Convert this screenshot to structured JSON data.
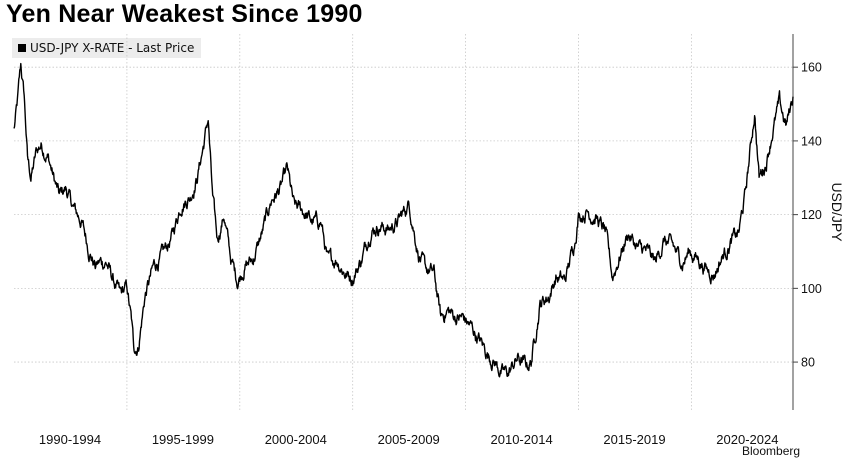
{
  "title": "Yen Near Weakest Since 1990",
  "legend": {
    "label": "USD-JPY X-RATE - Last Price",
    "icon": "black-square-swatch"
  },
  "source": "Bloomberg",
  "chart_data": {
    "type": "line",
    "title": "Yen Near Weakest Since 1990",
    "ylabel": "USD/JPY",
    "xlabel": "",
    "ylim": [
      67,
      169
    ],
    "yticks": [
      80,
      100,
      120,
      140,
      160
    ],
    "xlim": [
      1990.0,
      2024.5
    ],
    "x_tick_labels": [
      {
        "label": "1990-1994",
        "x": 1990
      },
      {
        "label": "1995-1999",
        "x": 1995
      },
      {
        "label": "2000-2004",
        "x": 2000
      },
      {
        "label": "2005-2009",
        "x": 2005
      },
      {
        "label": "2010-2014",
        "x": 2010
      },
      {
        "label": "2015-2019",
        "x": 2015
      },
      {
        "label": "2020-2024",
        "x": 2020
      }
    ],
    "x_gridlines": [
      1995,
      2000,
      2005,
      2010,
      2015,
      2020
    ],
    "grid": true,
    "legend_position": "top-left",
    "y_axis_side": "right",
    "line_color": "#000000",
    "series": [
      {
        "name": "USD-JPY X-RATE - Last Price",
        "x": [
          1990.0,
          1990.15,
          1990.3,
          1990.45,
          1990.6,
          1990.75,
          1991.0,
          1991.2,
          1991.5,
          1991.8,
          1992.0,
          1992.3,
          1992.6,
          1993.0,
          1993.3,
          1993.6,
          1993.8,
          1994.1,
          1994.4,
          1994.7,
          1995.0,
          1995.2,
          1995.3,
          1995.5,
          1995.8,
          1996.2,
          1996.6,
          1997.0,
          1997.4,
          1997.8,
          1998.1,
          1998.4,
          1998.6,
          1998.8,
          1999.0,
          1999.3,
          1999.6,
          1999.9,
          2000.2,
          2000.6,
          2001.0,
          2001.4,
          2001.8,
          2002.1,
          2002.4,
          2002.8,
          2003.2,
          2003.6,
          2003.9,
          2004.3,
          2004.7,
          2005.0,
          2005.4,
          2005.8,
          2006.2,
          2006.6,
          2007.0,
          2007.5,
          2007.9,
          2008.2,
          2008.6,
          2008.9,
          2009.2,
          2009.6,
          2009.9,
          2010.3,
          2010.7,
          2011.0,
          2011.3,
          2011.6,
          2011.9,
          2012.3,
          2012.7,
          2012.9,
          2013.3,
          2013.7,
          2014.0,
          2014.4,
          2014.8,
          2015.0,
          2015.4,
          2015.8,
          2016.2,
          2016.5,
          2016.9,
          2017.2,
          2017.6,
          2018.0,
          2018.4,
          2018.8,
          2019.2,
          2019.6,
          2019.9,
          2020.3,
          2020.7,
          2021.0,
          2021.4,
          2021.8,
          2022.1,
          2022.4,
          2022.8,
          2023.0,
          2023.3,
          2023.6,
          2023.9,
          2024.2,
          2024.5
        ],
        "values": [
          143,
          150,
          160,
          152,
          135,
          130,
          137,
          139,
          136,
          129,
          125,
          127,
          122,
          118,
          111,
          106,
          107,
          107,
          102,
          98,
          100,
          91,
          84,
          84,
          98,
          106,
          109,
          114,
          123,
          125,
          130,
          139,
          146,
          124,
          113,
          120,
          108,
          102,
          106,
          108,
          115,
          124,
          127,
          132,
          122,
          121,
          118,
          118,
          107,
          108,
          104,
          103,
          108,
          116,
          117,
          116,
          118,
          123,
          110,
          105,
          104,
          92,
          94,
          92,
          92,
          89,
          85,
          82,
          80,
          77,
          77,
          81,
          79,
          80,
          96,
          98,
          103,
          102,
          112,
          120,
          121,
          119,
          115,
          103,
          110,
          115,
          111,
          110,
          107,
          113,
          111,
          107,
          110,
          108,
          105,
          104,
          109,
          113,
          115,
          126,
          148,
          130,
          134,
          143,
          150,
          144,
          152
        ]
      }
    ]
  }
}
